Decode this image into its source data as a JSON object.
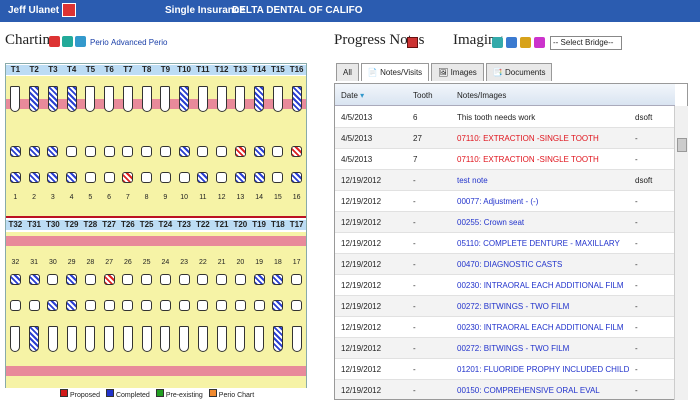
{
  "topbar": {
    "patient": "Jeff Ulanet",
    "insurance": "Single Insurance",
    "carrier": "DELTA DENTAL OF CALIFO"
  },
  "charting": {
    "title": "Charting",
    "perio": "Perio",
    "advanced_perio": "Advanced Perio"
  },
  "chart": {
    "upper_numbers": [
      "T1",
      "T2",
      "T3",
      "T4",
      "T5",
      "T6",
      "T7",
      "T8",
      "T9",
      "T10",
      "T11",
      "T12",
      "T13",
      "T14",
      "T15",
      "T16"
    ],
    "lower_numbers": [
      "T32",
      "T31",
      "T30",
      "T29",
      "T28",
      "T27",
      "T26",
      "T25",
      "T24",
      "T23",
      "T22",
      "T21",
      "T20",
      "T19",
      "T18",
      "T17"
    ],
    "upper_labels": [
      "1",
      "2",
      "3",
      "4",
      "5",
      "6",
      "7",
      "8",
      "9",
      "10",
      "11",
      "12",
      "13",
      "14",
      "15",
      "16"
    ],
    "lower_labels": [
      "32",
      "31",
      "30",
      "29",
      "28",
      "27",
      "26",
      "25",
      "24",
      "23",
      "22",
      "21",
      "20",
      "19",
      "18",
      "17"
    ]
  },
  "legend": [
    {
      "label": "Proposed",
      "color": "#d21a1a"
    },
    {
      "label": "Completed",
      "color": "#2233cc"
    },
    {
      "label": "Pre-existing",
      "color": "#22a022"
    },
    {
      "label": "Perio Chart",
      "color": "#f08a30"
    }
  ],
  "progress": {
    "title": "Progress Notes"
  },
  "imaging": {
    "title": "Imaging",
    "bridge_select": "-- Select Bridge--"
  },
  "tabs": [
    "All",
    "Notes/Visits",
    "Images",
    "Documents"
  ],
  "grid": {
    "headers": {
      "date": "Date",
      "tooth": "Tooth",
      "notes": "Notes/Images"
    },
    "rows": [
      {
        "date": "4/5/2013",
        "tooth": "6",
        "note": "This tooth needs work",
        "user": "dsoft",
        "color": "#222222"
      },
      {
        "date": "4/5/2013",
        "tooth": "27",
        "note": "07110: EXTRACTION -SINGLE TOOTH",
        "user": "-",
        "color": "#e0141d"
      },
      {
        "date": "4/5/2013",
        "tooth": "7",
        "note": "07110: EXTRACTION -SINGLE TOOTH",
        "user": "-",
        "color": "#e0141d"
      },
      {
        "date": "12/19/2012",
        "tooth": "-",
        "note": "test note",
        "user": "dsoft",
        "color": "#2233cc"
      },
      {
        "date": "12/19/2012",
        "tooth": "-",
        "note": "00077: Adjustment - (-)",
        "user": "-",
        "color": "#2233cc"
      },
      {
        "date": "12/19/2012",
        "tooth": "-",
        "note": "00255: Crown seat",
        "user": "-",
        "color": "#2233cc"
      },
      {
        "date": "12/19/2012",
        "tooth": "-",
        "note": "05110: COMPLETE DENTURE - MAXILLARY",
        "user": "-",
        "color": "#2233cc"
      },
      {
        "date": "12/19/2012",
        "tooth": "-",
        "note": "00470: DIAGNOSTIC CASTS",
        "user": "-",
        "color": "#2233cc"
      },
      {
        "date": "12/19/2012",
        "tooth": "-",
        "note": "00230: INTRAORAL EACH ADDITIONAL FILM",
        "user": "-",
        "color": "#2233cc"
      },
      {
        "date": "12/19/2012",
        "tooth": "-",
        "note": "00272: BITWINGS - TWO FILM",
        "user": "-",
        "color": "#2233cc"
      },
      {
        "date": "12/19/2012",
        "tooth": "-",
        "note": "00230: INTRAORAL EACH ADDITIONAL FILM",
        "user": "-",
        "color": "#2233cc"
      },
      {
        "date": "12/19/2012",
        "tooth": "-",
        "note": "00272: BITWINGS - TWO FILM",
        "user": "-",
        "color": "#2233cc"
      },
      {
        "date": "12/19/2012",
        "tooth": "-",
        "note": "01201: FLUORIDE PROPHY INCLUDED CHILD",
        "user": "-",
        "color": "#2233cc"
      },
      {
        "date": "12/19/2012",
        "tooth": "-",
        "note": "00150: COMPREHENSIVE ORAL EVAL",
        "user": "-",
        "color": "#2233cc"
      }
    ]
  }
}
